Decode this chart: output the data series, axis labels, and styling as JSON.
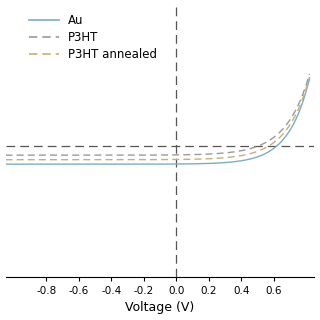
{
  "xlabel": "Voltage (V)",
  "xlim": [
    -1.05,
    0.85
  ],
  "ylim": [
    -1.8,
    1.2
  ],
  "xticks": [
    -0.8,
    -0.6,
    -0.4,
    -0.2,
    0.0,
    0.2,
    0.4,
    0.6
  ],
  "xtick_labels": [
    "-0.8",
    "-0.6",
    "-0.4",
    "-0.2",
    "0.0",
    "0.2",
    "0.4",
    "0.6"
  ],
  "hline_y": -0.35,
  "vline_x": 0.0,
  "au_color": "#7aadca",
  "p3ht_color": "#9a9a9a",
  "p3ht_ann_color": "#c8ae72",
  "dashed_line_color": "#555555",
  "background": "#ffffff",
  "legend_fontsize": 8.5,
  "xlabel_fontsize": 9,
  "tick_fontsize": 7.5
}
